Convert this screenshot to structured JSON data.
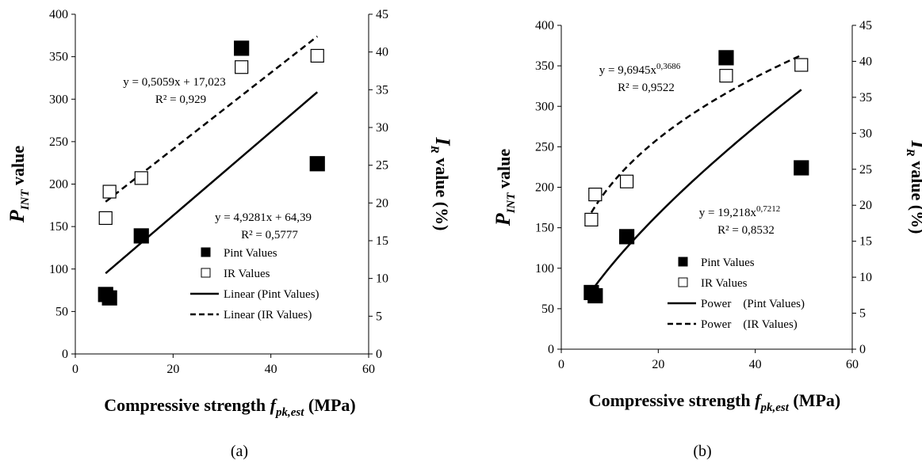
{
  "chart_data": [
    {
      "type": "scatter",
      "panel_label": "(a)",
      "xlabel": {
        "main": "Compressive strength ",
        "var": "f",
        "sub": "pk,est",
        "unit": " (MPa)"
      },
      "ylabel_left": {
        "var": "P",
        "sub": "INT",
        "rest": " value"
      },
      "ylabel_right": {
        "var": "I",
        "sub": "R",
        "rest": " value (%)"
      },
      "xlim": [
        0,
        60
      ],
      "ylim_left": [
        0,
        400
      ],
      "ylim_right": [
        0,
        45
      ],
      "x_ticks": [
        0,
        20,
        40,
        60
      ],
      "y_left_ticks": [
        0,
        50,
        100,
        150,
        200,
        250,
        300,
        350,
        400
      ],
      "y_right_ticks": [
        0,
        5,
        10,
        15,
        20,
        25,
        30,
        35,
        40,
        45
      ],
      "series": [
        {
          "name": "Pint Values",
          "axis": "left",
          "marker": "filled-square",
          "points": [
            [
              6.2,
              70
            ],
            [
              7,
              66
            ],
            [
              13.5,
              139
            ],
            [
              34,
              360
            ],
            [
              49.5,
              224
            ]
          ]
        },
        {
          "name": "IR Values",
          "axis": "right",
          "marker": "open-square",
          "points": [
            [
              6.2,
              18
            ],
            [
              7,
              21.5
            ],
            [
              13.5,
              23.3
            ],
            [
              34,
              38
            ],
            [
              49.5,
              39.5
            ]
          ]
        }
      ],
      "trendlines": [
        {
          "name": "Linear (Pint Values)",
          "kind": "linear",
          "axis": "left",
          "style": "solid",
          "a": 4.9281,
          "b": 64.39,
          "x_range": [
            6.2,
            49.5
          ]
        },
        {
          "name": "Linear (IR Values)",
          "kind": "linear",
          "axis": "right",
          "style": "dashed",
          "a": 0.5059,
          "b": 17.023,
          "x_range": [
            6.2,
            49.5
          ]
        }
      ],
      "equations": [
        {
          "line1": "y = 0,5059x + 17,023",
          "line2": "R² = 0,929"
        },
        {
          "line1": "y = 4,9281x + 64,39",
          "line2": "R² = 0,5777"
        }
      ],
      "legend": [
        {
          "label": "Pint Values",
          "symbol": "filled-square"
        },
        {
          "label": "IR Values",
          "symbol": "open-square"
        },
        {
          "label": "Linear (Pint Values)",
          "symbol": "solid-line"
        },
        {
          "label": "Linear (IR Values)",
          "symbol": "dashed-line"
        }
      ]
    },
    {
      "type": "scatter",
      "panel_label": "(b)",
      "xlabel": {
        "main": "Compressive strength ",
        "var": "f",
        "sub": "pk,est",
        "unit": " (MPa)"
      },
      "ylabel_left": {
        "var": "P",
        "sub": "INT",
        "rest": " value"
      },
      "ylabel_right": {
        "var": "I",
        "sub": "R",
        "rest": " value (%)"
      },
      "xlim": [
        0,
        60
      ],
      "ylim_left": [
        0,
        400
      ],
      "ylim_right": [
        0,
        45
      ],
      "x_ticks": [
        0,
        20,
        40,
        60
      ],
      "y_left_ticks": [
        0,
        50,
        100,
        150,
        200,
        250,
        300,
        350,
        400
      ],
      "y_right_ticks": [
        0,
        5,
        10,
        15,
        20,
        25,
        30,
        35,
        40,
        45
      ],
      "series": [
        {
          "name": "Pint Values",
          "axis": "left",
          "marker": "filled-square",
          "points": [
            [
              6.2,
              70
            ],
            [
              7,
              66
            ],
            [
              13.5,
              139
            ],
            [
              34,
              360
            ],
            [
              49.5,
              224
            ]
          ]
        },
        {
          "name": "IR Values",
          "axis": "right",
          "marker": "open-square",
          "points": [
            [
              6.2,
              18
            ],
            [
              7,
              21.5
            ],
            [
              13.5,
              23.3
            ],
            [
              34,
              38
            ],
            [
              49.5,
              39.5
            ]
          ]
        }
      ],
      "trendlines": [
        {
          "name": "Power (Pint Values)",
          "kind": "power",
          "axis": "left",
          "style": "solid",
          "a": 19.218,
          "b": 0.7212,
          "x_range": [
            6.2,
            49.5
          ]
        },
        {
          "name": "Power (IR Values)",
          "kind": "power",
          "axis": "right",
          "style": "dashed",
          "a": 9.6945,
          "b": 0.3686,
          "x_range": [
            6.2,
            49.5
          ]
        }
      ],
      "equations": [
        {
          "line1": "y = 9,6945x",
          "exp": "0,3686",
          "line2": "R² = 0,9522"
        },
        {
          "line1": "y = 19,218x",
          "exp": "0,7212",
          "line2": "R² = 0,8532"
        }
      ],
      "legend": [
        {
          "label": "Pint Values",
          "symbol": "filled-square"
        },
        {
          "label": "IR Values",
          "symbol": "open-square"
        },
        {
          "label": "Power    (Pint Values)",
          "symbol": "solid-line"
        },
        {
          "label": "Power    (IR Values)",
          "symbol": "dashed-line"
        }
      ]
    }
  ]
}
